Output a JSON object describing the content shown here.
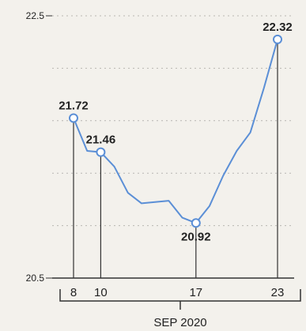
{
  "chart_data": {
    "type": "line",
    "x_caption": "SEP 2020",
    "ylim": [
      20.5,
      22.5
    ],
    "yticks": [
      "22.5",
      "20.5"
    ],
    "xticks": [
      "8",
      "10",
      "17",
      "23"
    ],
    "grid": "horizontal-dashed",
    "line_color": "#5b8fd6",
    "series": [
      {
        "points": [
          {
            "x": 8,
            "y": 21.72
          },
          {
            "x": 9,
            "y": 21.47
          },
          {
            "x": 10,
            "y": 21.46
          },
          {
            "x": 11,
            "y": 21.35
          },
          {
            "x": 12,
            "y": 21.15
          },
          {
            "x": 13,
            "y": 21.07
          },
          {
            "x": 14,
            "y": 21.08
          },
          {
            "x": 15,
            "y": 21.09
          },
          {
            "x": 16,
            "y": 20.96
          },
          {
            "x": 17,
            "y": 20.92
          },
          {
            "x": 18,
            "y": 21.05
          },
          {
            "x": 19,
            "y": 21.28
          },
          {
            "x": 20,
            "y": 21.47
          },
          {
            "x": 21,
            "y": 21.61
          },
          {
            "x": 22,
            "y": 21.95
          },
          {
            "x": 23,
            "y": 22.32
          }
        ]
      }
    ],
    "labeled_points": [
      {
        "x": 8,
        "y": 21.72,
        "label": "21.72",
        "position": "above"
      },
      {
        "x": 10,
        "y": 21.46,
        "label": "21.46",
        "position": "above"
      },
      {
        "x": 17,
        "y": 20.92,
        "label": "20.92",
        "position": "below"
      },
      {
        "x": 23,
        "y": 22.32,
        "label": "22.32",
        "position": "above"
      }
    ]
  }
}
